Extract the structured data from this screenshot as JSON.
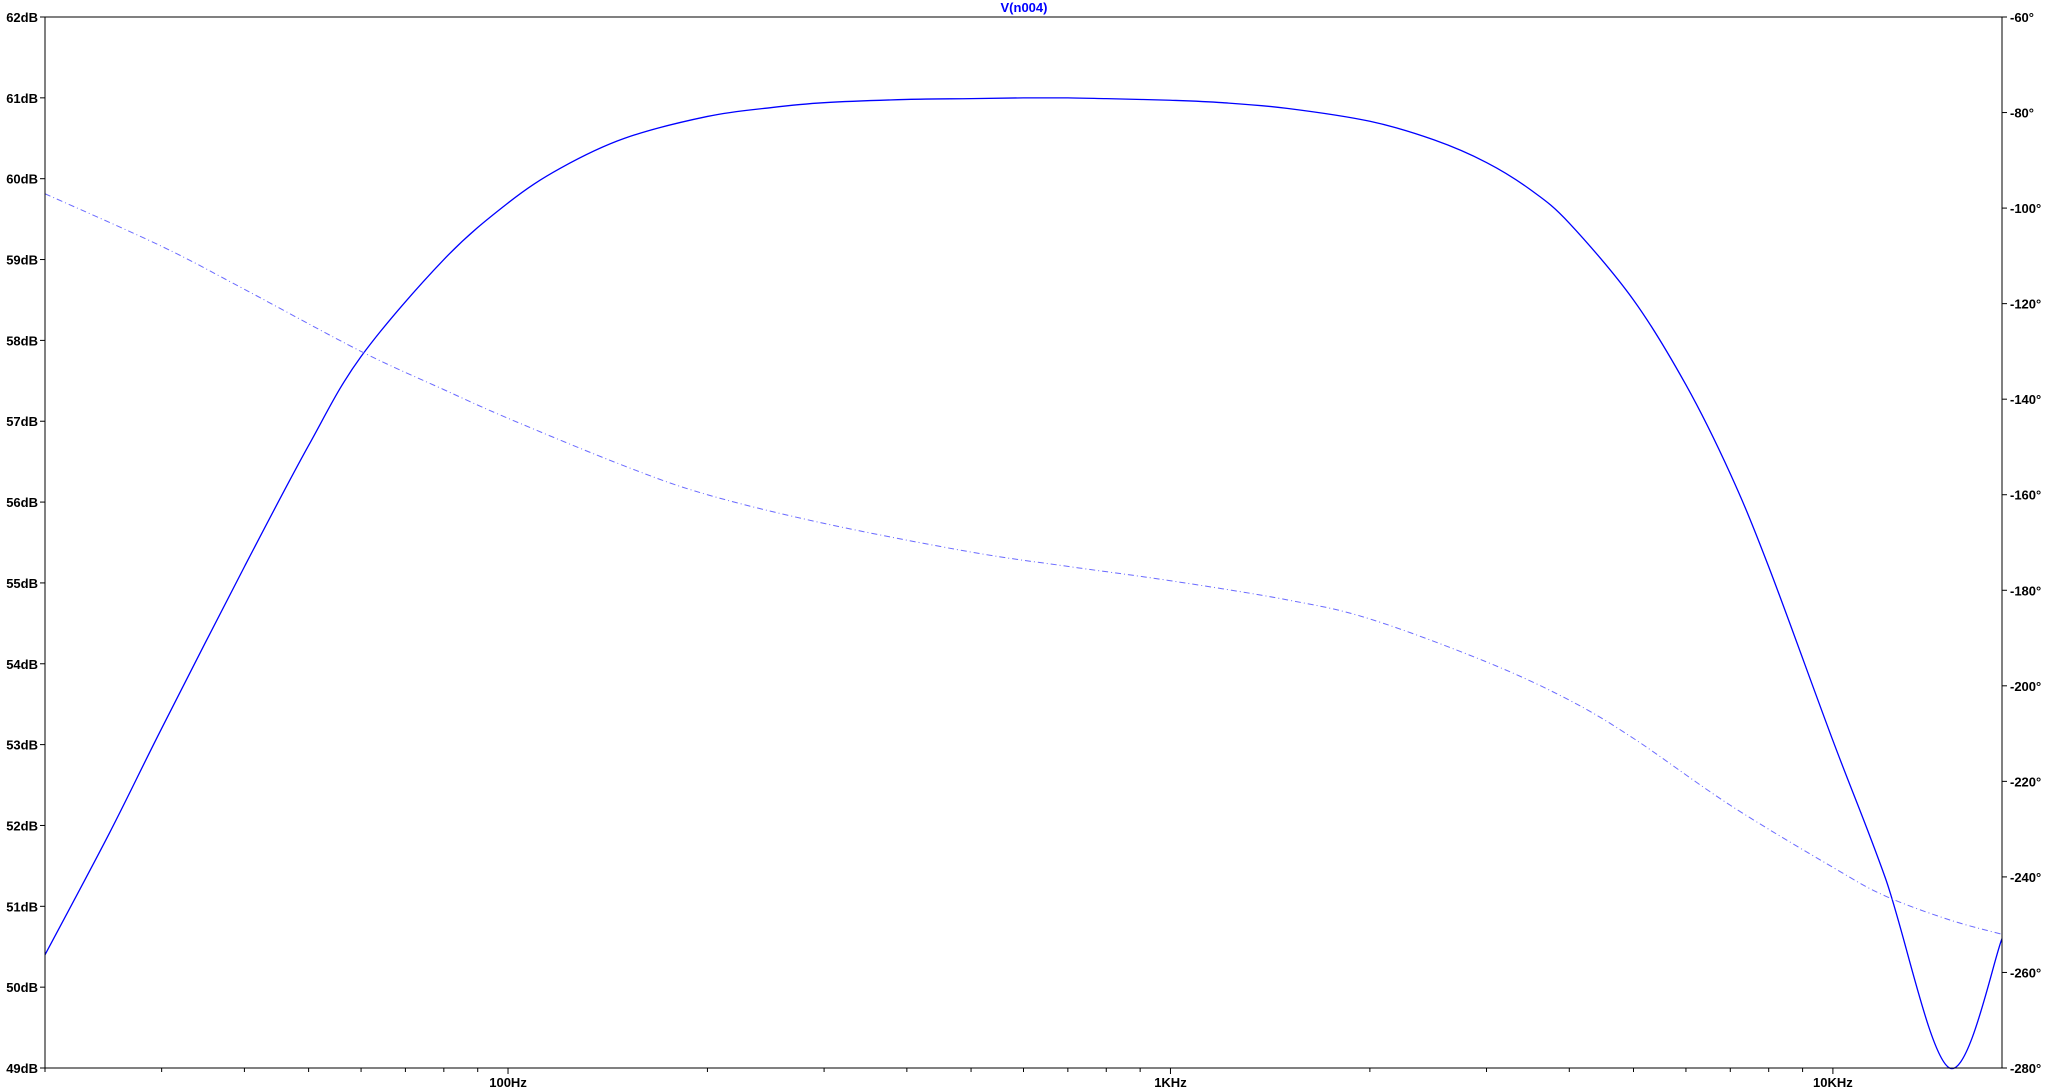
{
  "chart_data": {
    "type": "line",
    "title": "V(n004)",
    "x_scale": "log",
    "xlim": [
      20,
      18000
    ],
    "x_ticks": [
      {
        "value": 100,
        "label": "100Hz"
      },
      {
        "value": 1000,
        "label": "1KHz"
      },
      {
        "value": 10000,
        "label": "10KHz"
      }
    ],
    "y_left": {
      "unit": "dB",
      "ylim": [
        49,
        62
      ],
      "ticks": [
        {
          "value": 62,
          "label": "62dB"
        },
        {
          "value": 61,
          "label": "61dB"
        },
        {
          "value": 60,
          "label": "60dB"
        },
        {
          "value": 59,
          "label": "59dB"
        },
        {
          "value": 58,
          "label": "58dB"
        },
        {
          "value": 57,
          "label": "57dB"
        },
        {
          "value": 56,
          "label": "56dB"
        },
        {
          "value": 55,
          "label": "55dB"
        },
        {
          "value": 54,
          "label": "54dB"
        },
        {
          "value": 53,
          "label": "53dB"
        },
        {
          "value": 52,
          "label": "52dB"
        },
        {
          "value": 51,
          "label": "51dB"
        },
        {
          "value": 50,
          "label": "50dB"
        },
        {
          "value": 49,
          "label": "49dB"
        }
      ]
    },
    "y_right": {
      "unit": "°",
      "ylim": [
        -280,
        -60
      ],
      "ticks": [
        {
          "value": -60,
          "label": "-60°"
        },
        {
          "value": -80,
          "label": "-80°"
        },
        {
          "value": -100,
          "label": "-100°"
        },
        {
          "value": -120,
          "label": "-120°"
        },
        {
          "value": -140,
          "label": "-140°"
        },
        {
          "value": -160,
          "label": "-160°"
        },
        {
          "value": -180,
          "label": "-180°"
        },
        {
          "value": -200,
          "label": "-200°"
        },
        {
          "value": -220,
          "label": "-220°"
        },
        {
          "value": -240,
          "label": "-240°"
        },
        {
          "value": -260,
          "label": "-260°"
        },
        {
          "value": -280,
          "label": "-280°"
        }
      ]
    },
    "series": [
      {
        "axis": "left",
        "style": "solid",
        "color": "#0000ff",
        "x": [
          20,
          25,
          30,
          40,
          50,
          60,
          80,
          100,
          120,
          150,
          200,
          250,
          300,
          400,
          500,
          600,
          700,
          800,
          1000,
          1200,
          1500,
          2000,
          2500,
          3000,
          3500,
          4000,
          5000,
          6000,
          7000,
          8000,
          10000,
          12000,
          15000,
          18000
        ],
        "y": [
          50.4,
          51.9,
          53.2,
          55.2,
          56.7,
          57.8,
          59.0,
          59.7,
          60.13,
          60.5,
          60.77,
          60.88,
          60.94,
          60.98,
          60.99,
          61.0,
          61.0,
          60.99,
          60.97,
          60.94,
          60.87,
          60.71,
          60.48,
          60.2,
          59.86,
          59.45,
          58.5,
          57.45,
          56.35,
          55.2,
          53.05,
          51.35,
          49.0,
          50.6
        ]
      },
      {
        "axis": "right",
        "style": "dashed",
        "color": "#6a6aff",
        "x": [
          20,
          30,
          40,
          60,
          80,
          100,
          150,
          200,
          300,
          500,
          700,
          1000,
          1500,
          2000,
          3000,
          4000,
          5000,
          7000,
          10000,
          12000,
          15000,
          18000
        ],
        "y": [
          -97,
          -108,
          -117,
          -130,
          -138,
          -144,
          -154,
          -160,
          -166,
          -172,
          -175,
          -178,
          -182,
          -186,
          -195,
          -203,
          -211,
          -225,
          -238,
          -244,
          -249,
          -252
        ]
      }
    ]
  }
}
